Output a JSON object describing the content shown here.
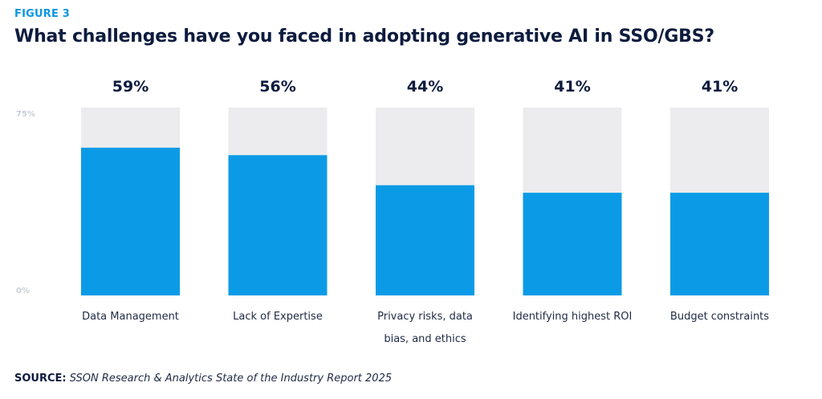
{
  "figure_label": "FIGURE 3",
  "title": "What challenges have you faced in adopting generative AI in SSO/GBS?",
  "source": {
    "label": "SOURCE:",
    "text": "SSON Research & Analytics State of the Industry Report 2025"
  },
  "colors": {
    "bar": "#0b9be6",
    "track": "#ececee",
    "title": "#0d1b3e",
    "figure_label": "#0b96e0",
    "axis_tick": "#c9cdd6"
  },
  "chart_data": {
    "type": "bar",
    "title": "What challenges have you faced in adopting generative AI in SSO/GBS?",
    "xlabel": "",
    "ylabel": "",
    "ylim": [
      0,
      75
    ],
    "y_ticks": [
      "0%",
      "75%"
    ],
    "grid": false,
    "legend": "none",
    "categories": [
      [
        "Data Management"
      ],
      [
        "Lack of Expertise"
      ],
      [
        "Privacy risks, data",
        "bias, and ethics"
      ],
      [
        "Identifying highest ROI"
      ],
      [
        "Budget constraints"
      ]
    ],
    "values": [
      59,
      56,
      44,
      41,
      41
    ],
    "value_labels": [
      "59%",
      "56%",
      "44%",
      "41%",
      "41%"
    ]
  }
}
